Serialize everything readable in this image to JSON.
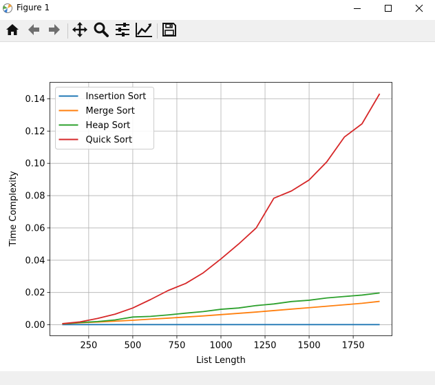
{
  "window": {
    "title": "Figure 1",
    "controls": [
      "minimize-icon",
      "maximize-icon",
      "close-icon"
    ]
  },
  "toolbar": {
    "buttons": [
      "home-icon",
      "back-icon",
      "forward-icon",
      "pan-icon",
      "zoom-icon",
      "configure-subplots-icon",
      "edit-axis-icon",
      "save-icon"
    ]
  },
  "chart_data": {
    "type": "line",
    "title": "",
    "xlabel": "List Length",
    "ylabel": "Time Complexity",
    "xlim": [
      30,
      1970
    ],
    "ylim": [
      -0.0068,
      0.1502
    ],
    "xticks": [
      250,
      500,
      750,
      1000,
      1250,
      1500,
      1750
    ],
    "xtick_labels": [
      "250",
      "500",
      "750",
      "1000",
      "1250",
      "1500",
      "1750"
    ],
    "yticks": [
      0.0,
      0.02,
      0.04,
      0.06,
      0.08,
      0.1,
      0.12,
      0.14
    ],
    "ytick_labels": [
      "0.00",
      "0.02",
      "0.04",
      "0.06",
      "0.08",
      "0.10",
      "0.12",
      "0.14"
    ],
    "grid": true,
    "legend_loc": "upper left",
    "x": [
      100,
      200,
      300,
      400,
      500,
      600,
      700,
      800,
      900,
      1000,
      1100,
      1200,
      1300,
      1400,
      1500,
      1600,
      1700,
      1800,
      1900
    ],
    "series": [
      {
        "name": "Insertion Sort",
        "color": "#1f77b4",
        "values": [
          0.0001,
          0.0001,
          0.0001,
          0.0001,
          0.0001,
          0.0001,
          0.0001,
          0.0001,
          0.0001,
          0.0001,
          0.0001,
          0.0001,
          0.0001,
          0.0001,
          0.0001,
          0.0001,
          0.0001,
          0.0001,
          0.0001
        ]
      },
      {
        "name": "Merge Sort",
        "color": "#ff7f0e",
        "values": [
          0.0005,
          0.0012,
          0.0017,
          0.0022,
          0.0028,
          0.0035,
          0.0041,
          0.0048,
          0.0055,
          0.0063,
          0.0071,
          0.0079,
          0.0088,
          0.0097,
          0.0106,
          0.0115,
          0.0124,
          0.0133,
          0.0145
        ]
      },
      {
        "name": "Heap Sort",
        "color": "#2ca02c",
        "values": [
          0.0006,
          0.0014,
          0.002,
          0.003,
          0.0048,
          0.0052,
          0.0061,
          0.0072,
          0.0082,
          0.0096,
          0.0104,
          0.0119,
          0.0129,
          0.0144,
          0.0152,
          0.0166,
          0.0175,
          0.0184,
          0.0197
        ]
      },
      {
        "name": "Quick Sort",
        "color": "#d62728",
        "values": [
          0.0007,
          0.0018,
          0.0039,
          0.0066,
          0.0104,
          0.0156,
          0.0212,
          0.0256,
          0.0322,
          0.0408,
          0.05,
          0.06,
          0.0784,
          0.0829,
          0.0897,
          0.1009,
          0.1163,
          0.1245,
          0.1431
        ]
      }
    ]
  }
}
